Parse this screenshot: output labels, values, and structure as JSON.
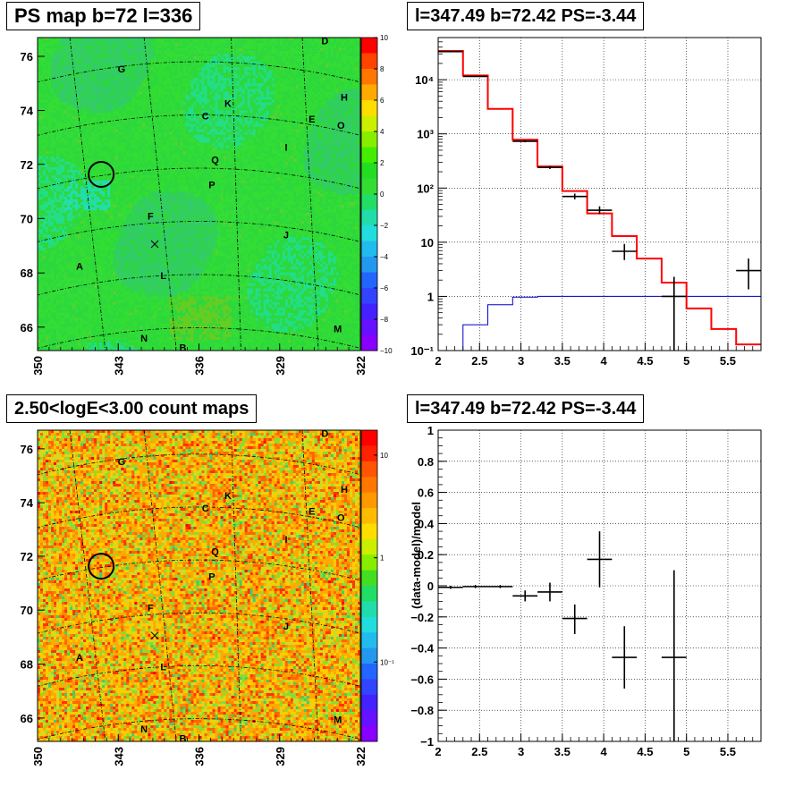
{
  "colors": {
    "map_base": "#33dd33",
    "count_map_base": "#ffb000",
    "model_line": "#ff0000",
    "background_line": "#0000cc",
    "data_marker": "#000000"
  },
  "panels": {
    "ps_map": {
      "title": "PS map b=72 l=336",
      "ytick_labels": [
        "76",
        "74",
        "72",
        "70",
        "68",
        "66"
      ],
      "xtick_labels": [
        "350",
        "343",
        "336",
        "329",
        "322"
      ],
      "colorbar_labels": [
        "10",
        "8",
        "6",
        "4",
        "2",
        "0",
        "−2",
        "−4",
        "−6",
        "−8",
        "−10"
      ]
    },
    "count_map": {
      "title": "2.50<logE<3.00 count maps",
      "ytick_labels": [
        "76",
        "74",
        "72",
        "70",
        "68",
        "66"
      ],
      "xtick_labels": [
        "350",
        "343",
        "336",
        "329",
        "322"
      ],
      "colorbar_labels": [
        "10",
        "1",
        "10⁻¹"
      ]
    },
    "spectrum": {
      "title": "l=347.49 b=72.42 PS=-3.44"
    },
    "residual": {
      "title": "l=347.49 b=72.42 PS=-3.44"
    }
  },
  "map_markers": [
    {
      "label": "D"
    },
    {
      "label": "G"
    },
    {
      "label": "H"
    },
    {
      "label": "K"
    },
    {
      "label": "C"
    },
    {
      "label": "E"
    },
    {
      "label": "O"
    },
    {
      "label": "I"
    },
    {
      "label": "Q"
    },
    {
      "label": "P"
    },
    {
      "label": "F"
    },
    {
      "label": "J"
    },
    {
      "label": "A"
    },
    {
      "label": "L"
    },
    {
      "label": "M"
    },
    {
      "label": "N"
    },
    {
      "label": "B"
    }
  ],
  "chart_data": [
    {
      "type": "heatmap",
      "title": "PS map b=72 l=336",
      "xlabel": "",
      "ylabel": "",
      "xlim": [
        350,
        322
      ],
      "ylim": [
        65.3,
        76.8
      ],
      "zlim": [
        -10,
        10
      ],
      "xticks": [
        350,
        343,
        336,
        329,
        322
      ],
      "yticks": [
        76,
        74,
        72,
        70,
        68,
        66
      ],
      "colorbar_ticks": [
        10,
        8,
        6,
        4,
        2,
        0,
        -2,
        -4,
        -6,
        -8,
        -10
      ]
    },
    {
      "type": "line",
      "title": "l=347.49 b=72.42 PS=-3.44",
      "xlabel": "",
      "ylabel": "",
      "log_y": true,
      "xlim": [
        2,
        5.9
      ],
      "ylim": [
        0.1,
        60000
      ],
      "xticks": [
        2,
        2.5,
        3,
        3.5,
        4,
        4.5,
        5,
        5.5
      ],
      "xtick_labels": [
        "2",
        "2.5",
        "3",
        "3.5",
        "4",
        "4.5",
        "5",
        "5.5"
      ],
      "yticks": [
        0.1,
        1,
        10,
        100,
        1000,
        10000
      ],
      "ytick_labels": [
        "10⁻¹",
        "1",
        "10",
        "10²",
        "10³",
        "10⁴"
      ],
      "grid": true,
      "bin_edges": [
        2.0,
        2.3,
        2.6,
        2.9,
        3.2,
        3.5,
        3.8,
        4.1,
        4.4,
        4.7,
        5.0,
        5.3,
        5.6,
        5.9
      ],
      "model": [
        34000,
        12000,
        2900,
        780,
        250,
        88,
        34,
        13,
        5,
        1.8,
        0.6,
        0.25,
        0.13
      ],
      "background": [
        0.1,
        0.3,
        0.7,
        0.97,
        1.0,
        1.0,
        1.0,
        1.0,
        1.0,
        1.0,
        1.0,
        1.0,
        1.0
      ],
      "data_points": [
        {
          "x": 2.15,
          "xerr": 0.15,
          "y": 33000,
          "ylo": 32600,
          "yhi": 33400
        },
        {
          "x": 2.45,
          "xerr": 0.15,
          "y": 11500,
          "ylo": 11300,
          "yhi": 11700
        },
        {
          "x": 3.05,
          "xerr": 0.15,
          "y": 730,
          "ylo": 700,
          "yhi": 760
        },
        {
          "x": 3.35,
          "xerr": 0.15,
          "y": 240,
          "ylo": 225,
          "yhi": 255
        },
        {
          "x": 3.65,
          "xerr": 0.15,
          "y": 70,
          "ylo": 62,
          "yhi": 79
        },
        {
          "x": 3.95,
          "xerr": 0.15,
          "y": 39,
          "ylo": 33,
          "yhi": 46
        },
        {
          "x": 4.25,
          "xerr": 0.15,
          "y": 6.8,
          "ylo": 4.7,
          "yhi": 9.3
        },
        {
          "x": 4.85,
          "xerr": 0.15,
          "y": 1.0,
          "ylo": 0.1,
          "yhi": 2.3
        },
        {
          "x": 5.75,
          "xerr": 0.15,
          "y": 3.0,
          "ylo": 1.35,
          "yhi": 5.0
        }
      ]
    },
    {
      "type": "heatmap",
      "title": "2.50<logE<3.00 count maps",
      "xlabel": "",
      "ylabel": "",
      "xlim": [
        350,
        322
      ],
      "ylim": [
        65.3,
        76.8
      ],
      "log_z": true,
      "xticks": [
        350,
        343,
        336,
        329,
        322
      ],
      "yticks": [
        76,
        74,
        72,
        70,
        68,
        66
      ],
      "colorbar_ticks": [
        10,
        1,
        0.1
      ]
    },
    {
      "type": "scatter",
      "title": "l=347.49 b=72.42 PS=-3.44",
      "xlabel": "",
      "ylabel": "(data-model)/model",
      "xlim": [
        2,
        5.9
      ],
      "ylim": [
        -1,
        1
      ],
      "xticks": [
        2,
        2.5,
        3,
        3.5,
        4,
        4.5,
        5,
        5.5
      ],
      "xtick_labels": [
        "2",
        "2.5",
        "3",
        "3.5",
        "4",
        "4.5",
        "5",
        "5.5"
      ],
      "yticks": [
        -1,
        -0.8,
        -0.6,
        -0.4,
        -0.2,
        0,
        0.2,
        0.4,
        0.6,
        0.8,
        1
      ],
      "ytick_labels": [
        "−1",
        "−0.8",
        "−0.6",
        "−0.4",
        "−0.2",
        "0",
        "0.2",
        "0.4",
        "0.6",
        "0.8",
        "1"
      ],
      "grid": true,
      "data_points": [
        {
          "x": 2.15,
          "xerr": 0.15,
          "y": -0.01,
          "ylo": -0.02,
          "yhi": 0.0
        },
        {
          "x": 2.45,
          "xerr": 0.15,
          "y": -0.005,
          "ylo": -0.015,
          "yhi": 0.005
        },
        {
          "x": 2.75,
          "xerr": 0.15,
          "y": -0.005,
          "ylo": -0.015,
          "yhi": 0.005
        },
        {
          "x": 3.05,
          "xerr": 0.15,
          "y": -0.065,
          "ylo": -0.1,
          "yhi": -0.03
        },
        {
          "x": 3.35,
          "xerr": 0.15,
          "y": -0.04,
          "ylo": -0.1,
          "yhi": 0.02
        },
        {
          "x": 3.65,
          "xerr": 0.15,
          "y": -0.21,
          "ylo": -0.31,
          "yhi": -0.12
        },
        {
          "x": 3.95,
          "xerr": 0.15,
          "y": 0.17,
          "ylo": -0.01,
          "yhi": 0.35
        },
        {
          "x": 4.25,
          "xerr": 0.15,
          "y": -0.46,
          "ylo": -0.66,
          "yhi": -0.26
        },
        {
          "x": 4.85,
          "xerr": 0.15,
          "y": -0.46,
          "ylo": -1.0,
          "yhi": 0.1
        }
      ]
    }
  ]
}
